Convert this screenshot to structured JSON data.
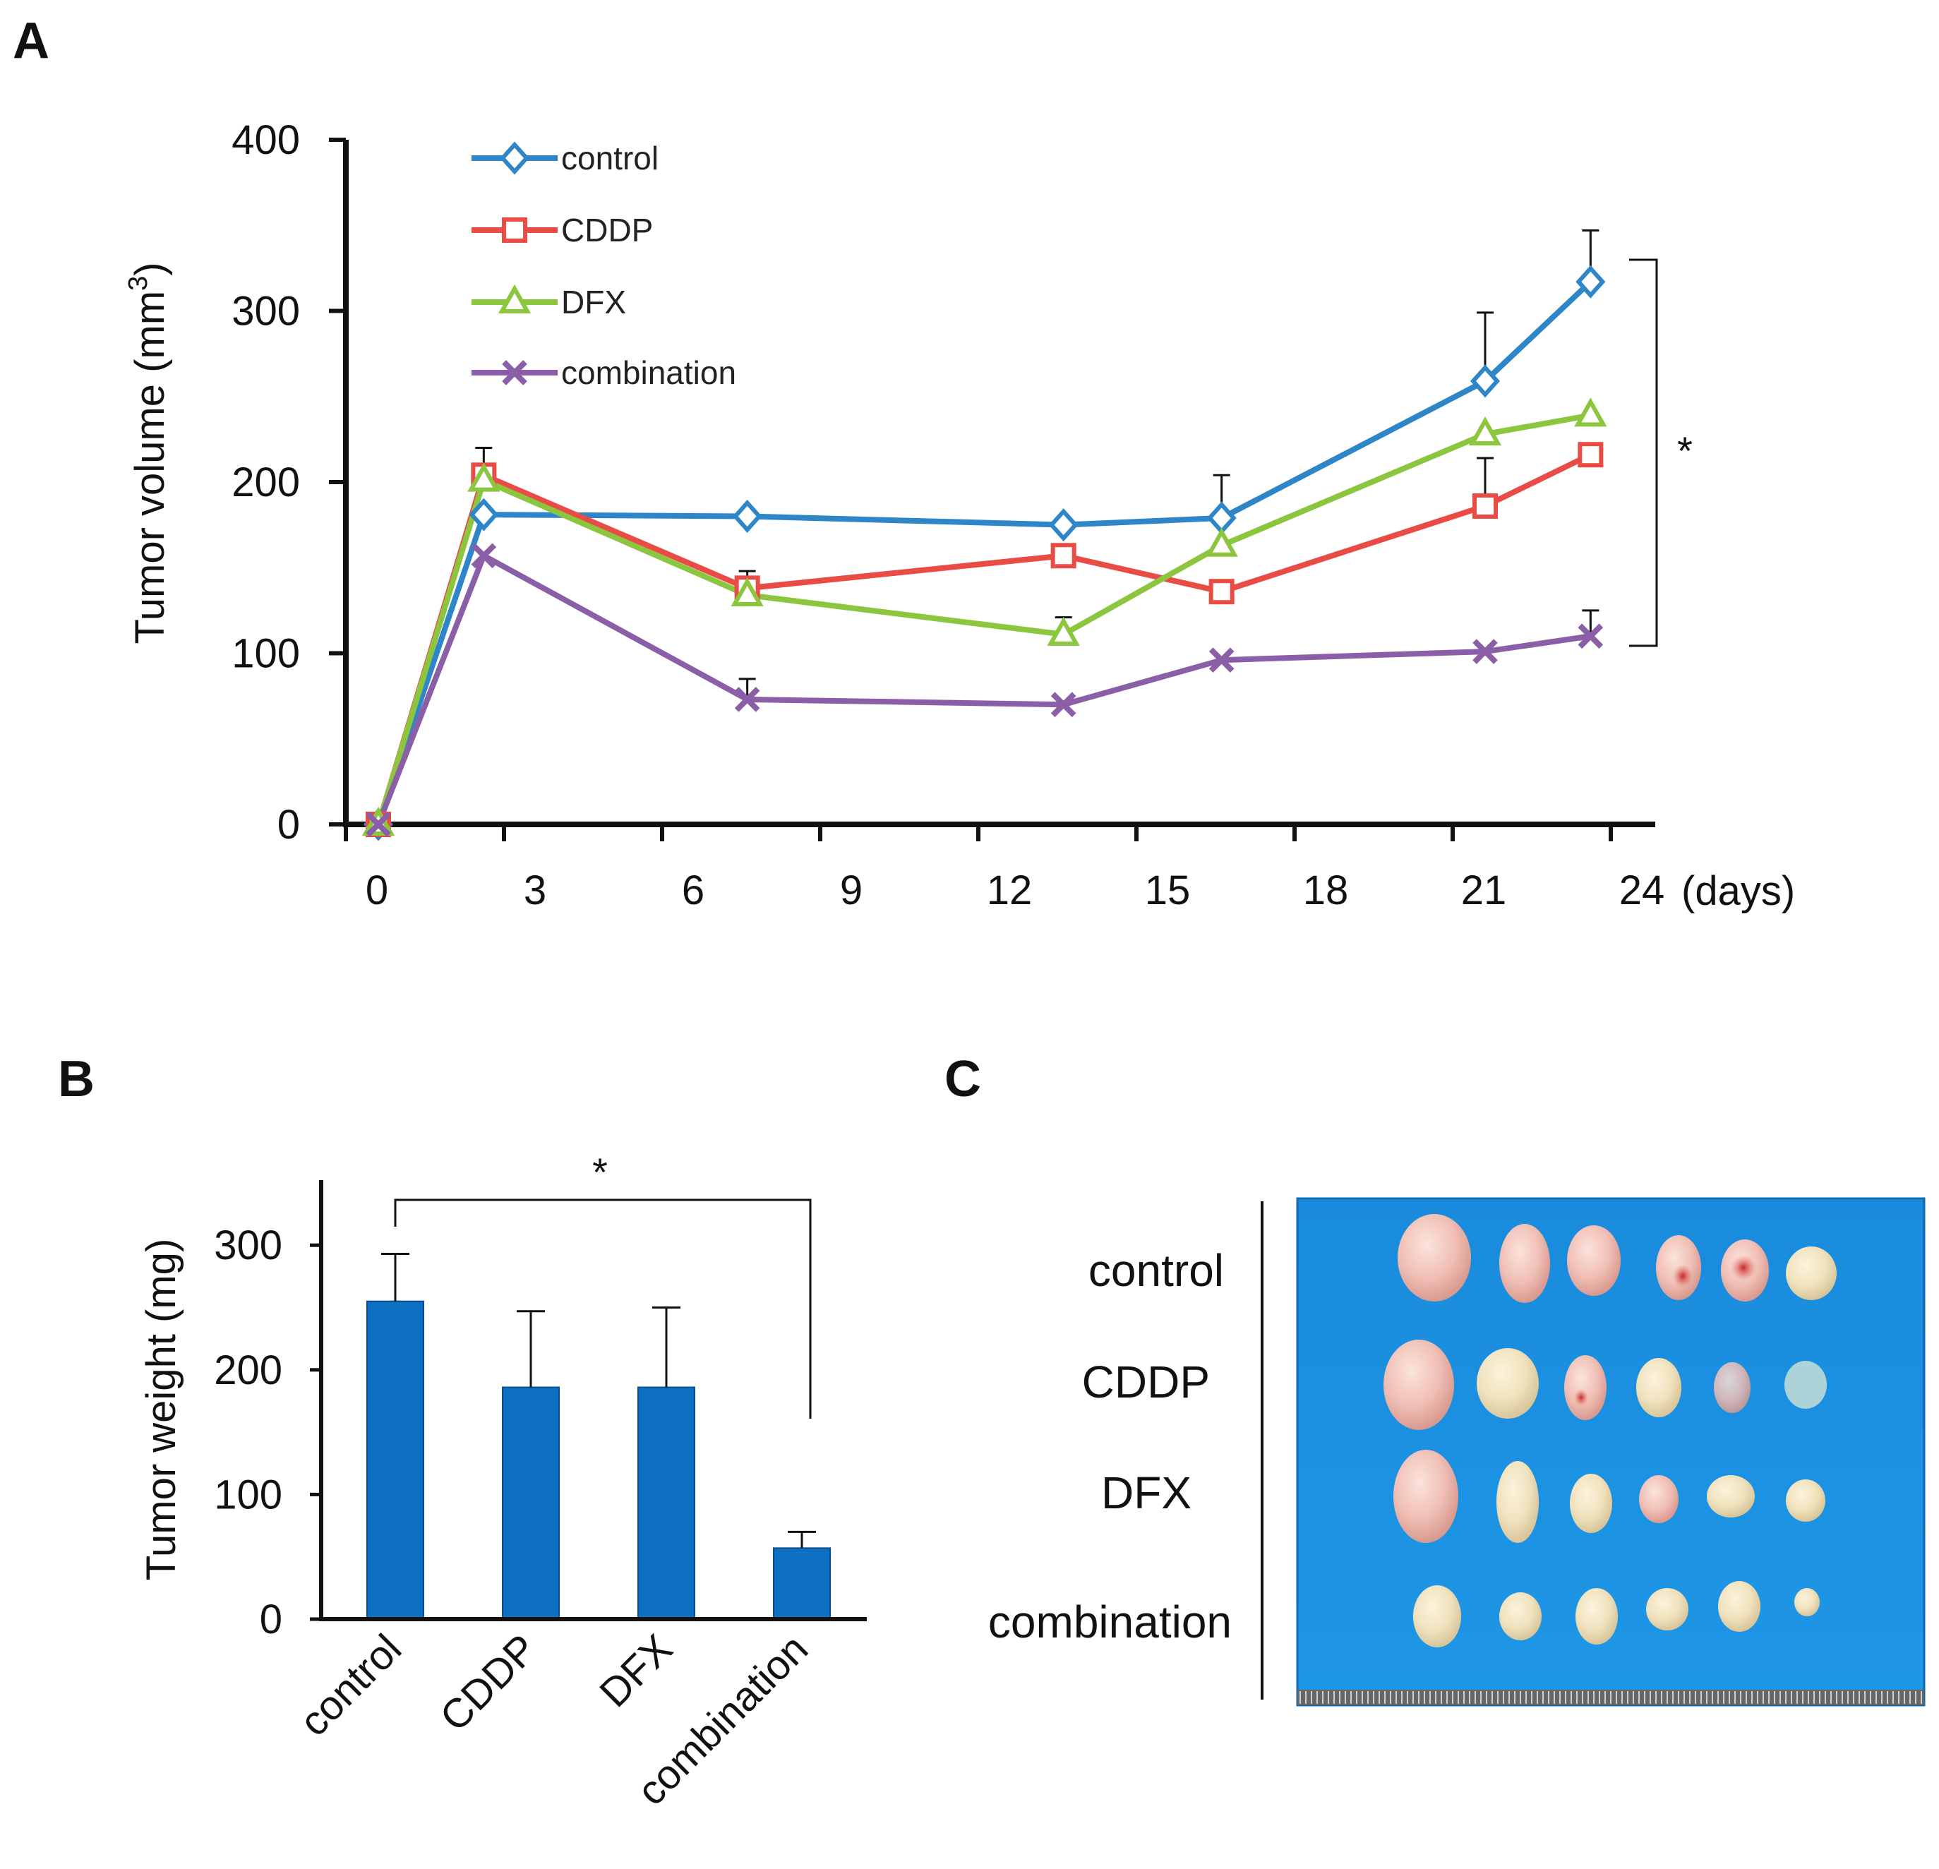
{
  "panels": {
    "a": "A",
    "b": "B",
    "c": "C"
  },
  "chart_data": [
    {
      "id": "tumor-volume",
      "type": "line",
      "title": "",
      "xlabel": "(days)",
      "ylabel": "Tumor volume (mm",
      "ylabel_superscript": "3",
      "ylabel_close": ")",
      "xlim": [
        -1.5,
        24.8
      ],
      "ylim": [
        0,
        400
      ],
      "xticks": [
        0,
        3,
        6,
        9,
        12,
        15,
        18,
        21,
        24
      ],
      "yticks": [
        0,
        100,
        200,
        300,
        400
      ],
      "grid": false,
      "legend_position": "top-left",
      "significance": "*",
      "series": [
        {
          "name": "control",
          "color": "#2e86c9",
          "marker": "diamond",
          "x": [
            0,
            2,
            7,
            13,
            16,
            21,
            23
          ],
          "y": [
            0,
            181,
            180,
            175,
            179,
            259,
            317
          ],
          "err": [
            0,
            0,
            0,
            0,
            25,
            40,
            30
          ]
        },
        {
          "name": "CDDP",
          "color": "#e84c45",
          "marker": "square",
          "x": [
            0,
            2,
            7,
            13,
            16,
            21,
            23
          ],
          "y": [
            0,
            204,
            138,
            157,
            136,
            186,
            216
          ],
          "err": [
            0,
            16,
            10,
            0,
            0,
            28,
            0
          ]
        },
        {
          "name": "DFX",
          "color": "#8cc63f",
          "marker": "triangle",
          "x": [
            0,
            2,
            7,
            13,
            16,
            21,
            23
          ],
          "y": [
            0,
            201,
            134,
            111,
            163,
            228,
            239
          ],
          "err": [
            0,
            0,
            0,
            10,
            0,
            0,
            0
          ]
        },
        {
          "name": "combination",
          "color": "#8b5fa8",
          "marker": "x",
          "x": [
            0,
            2,
            7,
            13,
            16,
            21,
            23
          ],
          "y": [
            0,
            157,
            73,
            70,
            96,
            101,
            110
          ],
          "err": [
            0,
            0,
            12,
            0,
            0,
            0,
            15
          ]
        }
      ]
    },
    {
      "id": "tumor-weight",
      "type": "bar",
      "title": "",
      "xlabel": "",
      "ylabel": "Tumor weight (mg)",
      "ylim": [
        0,
        350
      ],
      "yticks": [
        0,
        100,
        200,
        300
      ],
      "categories": [
        "control",
        "CDDP",
        "DFX",
        "combination"
      ],
      "values": [
        255,
        186,
        186,
        57
      ],
      "errors": [
        38,
        61,
        64,
        13
      ],
      "color": "#0d70c3",
      "significance": "*",
      "bracket_between": [
        "control",
        "combination"
      ]
    }
  ],
  "photo": {
    "rows": [
      "control",
      "CDDP",
      "DFX",
      "combination"
    ],
    "background_color": "#1b8ede"
  }
}
